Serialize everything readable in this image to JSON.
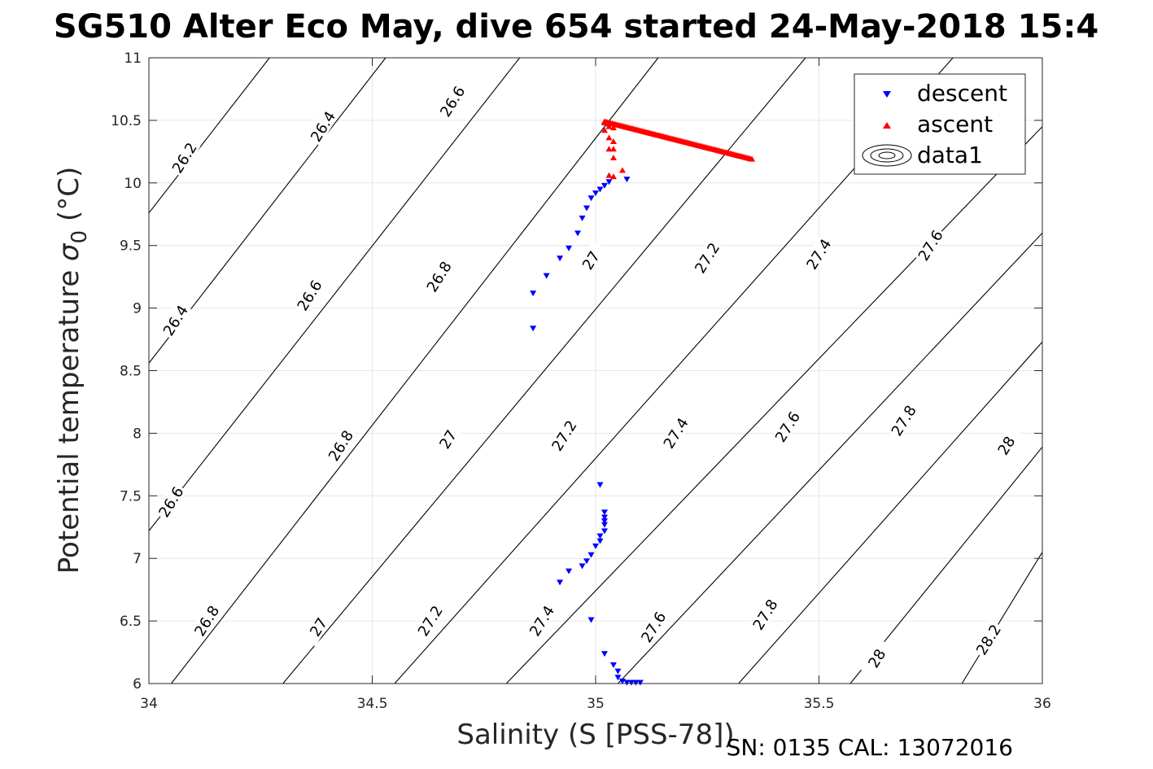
{
  "chart_data": {
    "type": "scatter",
    "title": "SG510 Alter Eco May, dive 654 started 24-May-2018 15:4",
    "xlabel": "Salinity (S [PSS-78])",
    "ylabel": "Potential temperature σ0 (°C)",
    "ylabel_main": "Potential temperature ",
    "ylabel_sigma": "σ",
    "ylabel_sub": "0",
    "ylabel_unit": " (°C)",
    "xlim": [
      34,
      36
    ],
    "ylim": [
      6,
      11
    ],
    "xticks": [
      34,
      34.5,
      35,
      35.5,
      36
    ],
    "xtick_labels": [
      "34",
      "34.5",
      "35",
      "35.5",
      "36"
    ],
    "yticks": [
      6,
      6.5,
      7,
      7.5,
      8,
      8.5,
      9,
      9.5,
      10,
      10.5,
      11
    ],
    "ytick_labels": [
      "6",
      "6.5",
      "7",
      "7.5",
      "8",
      "8.5",
      "9",
      "9.5",
      "10",
      "10.5",
      "11"
    ],
    "grid": true,
    "legend_position": "top-right",
    "footer": "SN: 0135  CAL: 13072016",
    "series": [
      {
        "name": "descent",
        "marker": "triangle-down",
        "color": "#0000ff",
        "points": [
          [
            35.07,
            10.03
          ],
          [
            35.03,
            10.01
          ],
          [
            35.02,
            9.98
          ],
          [
            35.01,
            9.95
          ],
          [
            35.0,
            9.92
          ],
          [
            34.99,
            9.88
          ],
          [
            34.98,
            9.8
          ],
          [
            34.97,
            9.72
          ],
          [
            34.96,
            9.6
          ],
          [
            34.94,
            9.48
          ],
          [
            34.92,
            9.4
          ],
          [
            34.89,
            9.26
          ],
          [
            34.86,
            9.12
          ],
          [
            34.86,
            8.84
          ],
          [
            35.01,
            7.59
          ],
          [
            35.02,
            7.37
          ],
          [
            35.02,
            7.33
          ],
          [
            35.02,
            7.3
          ],
          [
            35.02,
            7.27
          ],
          [
            35.02,
            7.22
          ],
          [
            35.01,
            7.18
          ],
          [
            35.01,
            7.14
          ],
          [
            35.0,
            7.1
          ],
          [
            34.99,
            7.03
          ],
          [
            34.98,
            6.98
          ],
          [
            34.97,
            6.94
          ],
          [
            34.94,
            6.9
          ],
          [
            34.92,
            6.81
          ],
          [
            34.99,
            6.51
          ],
          [
            35.02,
            6.24
          ],
          [
            35.04,
            6.15
          ],
          [
            35.05,
            6.1
          ],
          [
            35.05,
            6.05
          ],
          [
            35.06,
            6.02
          ],
          [
            35.07,
            6.01
          ],
          [
            35.08,
            6.01
          ],
          [
            35.09,
            6.01
          ],
          [
            35.1,
            6.01
          ]
        ]
      },
      {
        "name": "ascent",
        "marker": "triangle-up",
        "color": "#ff0000",
        "points": [
          [
            35.02,
            10.49
          ],
          [
            35.03,
            10.47
          ],
          [
            35.02,
            10.42
          ],
          [
            35.03,
            10.45
          ],
          [
            35.04,
            10.44
          ],
          [
            35.03,
            10.36
          ],
          [
            35.04,
            10.33
          ],
          [
            35.03,
            10.27
          ],
          [
            35.04,
            10.27
          ],
          [
            35.04,
            10.2
          ],
          [
            35.06,
            10.1
          ],
          [
            35.03,
            10.06
          ],
          [
            35.04,
            10.05
          ],
          [
            35.02,
            10.48
          ]
        ],
        "line_from": [
          35.02,
          10.49
        ],
        "line_to": [
          35.35,
          10.19
        ]
      },
      {
        "name": "data1",
        "marker": "contour",
        "color": "#000000",
        "contour_lines": [
          {
            "label": "26.2",
            "p1": [
              34.0,
              9.76
            ],
            "p2": [
              34.27,
              11.0
            ]
          },
          {
            "label": "26.4",
            "p1": [
              34.0,
              8.56
            ],
            "p2": [
              34.53,
              11.0
            ]
          },
          {
            "label": "26.6",
            "p1": [
              34.0,
              7.22
            ],
            "p2": [
              34.83,
              11.0
            ]
          },
          {
            "label": "26.8",
            "p1": [
              34.05,
              6.0
            ],
            "p2": [
              35.14,
              11.0
            ]
          },
          {
            "label": "27",
            "p1": [
              34.3,
              6.0
            ],
            "p2": [
              35.47,
              11.0
            ]
          },
          {
            "label": "27.2",
            "p1": [
              34.55,
              6.0
            ],
            "p2": [
              35.8,
              11.0
            ]
          },
          {
            "label": "27.4",
            "p1": [
              34.8,
              6.0
            ],
            "p2": [
              36.0,
              10.45
            ]
          },
          {
            "label": "27.6",
            "p1": [
              35.05,
              6.0
            ],
            "p2": [
              36.0,
              9.6
            ]
          },
          {
            "label": "27.8",
            "p1": [
              35.32,
              6.0
            ],
            "p2": [
              36.0,
              8.73
            ]
          },
          {
            "label": "28",
            "p1": [
              35.57,
              6.0
            ],
            "p2": [
              36.0,
              7.89
            ]
          },
          {
            "label": "28.2",
            "p1": [
              35.82,
              6.0
            ],
            "p2": [
              36.0,
              7.05
            ]
          }
        ],
        "contour_labels": [
          {
            "text": "26.2",
            "at": [
              34.08,
              10.2
            ]
          },
          {
            "text": "26.4",
            "at": [
              34.39,
              10.45
            ]
          },
          {
            "text": "26.6",
            "at": [
              34.68,
              10.65
            ]
          },
          {
            "text": "26.4",
            "at": [
              34.06,
              8.9
            ]
          },
          {
            "text": "26.6",
            "at": [
              34.36,
              9.1
            ]
          },
          {
            "text": "26.8",
            "at": [
              34.65,
              9.25
            ]
          },
          {
            "text": "27",
            "at": [
              34.99,
              9.38
            ]
          },
          {
            "text": "27.2",
            "at": [
              35.25,
              9.4
            ]
          },
          {
            "text": "27.4",
            "at": [
              35.5,
              9.43
            ]
          },
          {
            "text": "27.6",
            "at": [
              35.75,
              9.5
            ]
          },
          {
            "text": "26.6",
            "at": [
              34.05,
              7.45
            ]
          },
          {
            "text": "26.8",
            "at": [
              34.43,
              7.9
            ]
          },
          {
            "text": "27",
            "at": [
              34.67,
              7.95
            ]
          },
          {
            "text": "27.2",
            "at": [
              34.93,
              7.98
            ]
          },
          {
            "text": "27.4",
            "at": [
              35.18,
              8.0
            ]
          },
          {
            "text": "27.6",
            "at": [
              35.43,
              8.05
            ]
          },
          {
            "text": "27.8",
            "at": [
              35.69,
              8.1
            ]
          },
          {
            "text": "28",
            "at": [
              35.92,
              7.9
            ]
          },
          {
            "text": "26.8",
            "at": [
              34.13,
              6.5
            ]
          },
          {
            "text": "27",
            "at": [
              34.38,
              6.45
            ]
          },
          {
            "text": "27.2",
            "at": [
              34.63,
              6.5
            ]
          },
          {
            "text": "27.4",
            "at": [
              34.88,
              6.5
            ]
          },
          {
            "text": "27.6",
            "at": [
              35.13,
              6.45
            ]
          },
          {
            "text": "27.8",
            "at": [
              35.38,
              6.55
            ]
          },
          {
            "text": "28",
            "at": [
              35.63,
              6.2
            ]
          },
          {
            "text": "28.2",
            "at": [
              35.88,
              6.35
            ]
          }
        ]
      }
    ]
  }
}
